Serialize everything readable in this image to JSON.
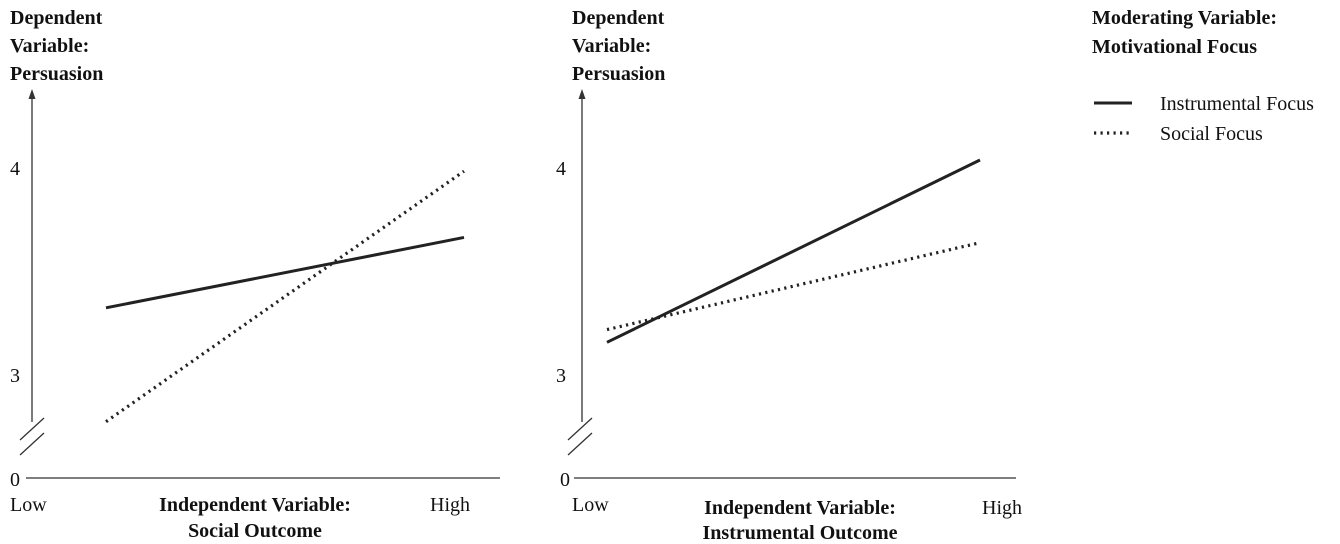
{
  "legend": {
    "title_line1": "Moderating Variable:",
    "title_line2": "Motivational Focus"
  },
  "colors": {
    "line": "#222222",
    "axis": "#333333",
    "text": "#111111"
  },
  "chart_data": [
    {
      "type": "line",
      "ylabel_lines": [
        "Dependent",
        "Variable:",
        "Persuasion"
      ],
      "xlabel_lines": [
        "Independent Variable:",
        "Social Outcome"
      ],
      "categories": [
        "Low",
        "High"
      ],
      "y_ticks": [
        "0",
        "3",
        "4"
      ],
      "axis_break": true,
      "ylim": [
        3,
        4
      ],
      "legend_position": "top-right",
      "series": [
        {
          "name": "Instrumental Focus",
          "style": "solid",
          "values": [
            3.31,
            3.65
          ]
        },
        {
          "name": "Social Focus",
          "style": "dotted",
          "values": [
            2.76,
            3.97
          ]
        }
      ]
    },
    {
      "type": "line",
      "ylabel_lines": [
        "Dependent",
        "Variable:",
        "Persuasion"
      ],
      "xlabel_lines": [
        "Independent Variable:",
        "Instrumental Outcome"
      ],
      "categories": [
        "Low",
        "High"
      ],
      "y_ticks": [
        "0",
        "3",
        "4"
      ],
      "axis_break": true,
      "ylim": [
        3,
        4
      ],
      "legend_position": "top-right",
      "series": [
        {
          "name": "Instrumental Focus",
          "style": "solid",
          "values": [
            3.14,
            4.0
          ]
        },
        {
          "name": "Social Focus",
          "style": "dotted",
          "values": [
            3.2,
            3.61
          ]
        }
      ]
    }
  ]
}
